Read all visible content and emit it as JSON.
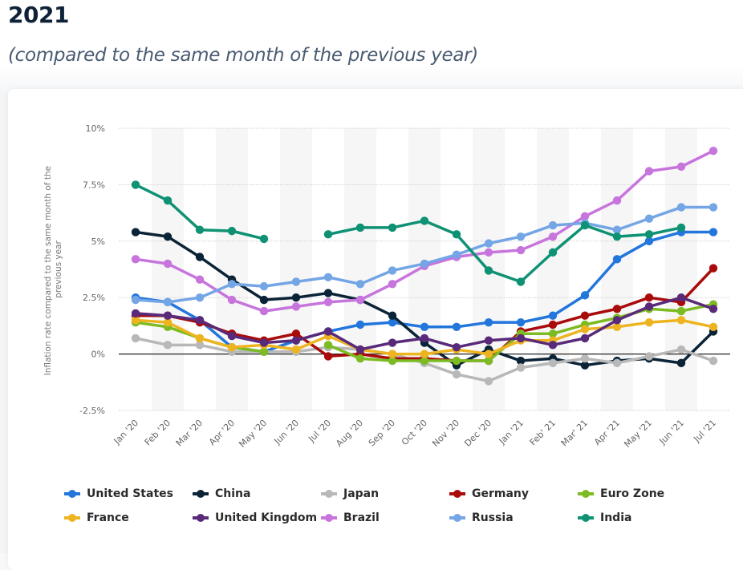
{
  "header": {
    "title": "2021",
    "subtitle": "(compared to the same month of the previous year)"
  },
  "chart_data": {
    "type": "line",
    "title": "2021",
    "subtitle": "(compared to the same month of the previous year)",
    "xlabel": "",
    "ylabel": "Inflation rate compared to the same month of the previous year",
    "ylim": [
      -2.5,
      10
    ],
    "y_ticks": [
      -2.5,
      0,
      2.5,
      5,
      7.5,
      10
    ],
    "y_tick_labels": [
      "-2.5%",
      "0%",
      "2.5%",
      "5%",
      "7.5%",
      "10%"
    ],
    "grid": true,
    "legend_position": "bottom",
    "categories": [
      "Jan '20",
      "Feb '20",
      "Mar '20",
      "Apr '20",
      "May '20",
      "Jun '20",
      "Jul '20",
      "Aug '20",
      "Sep '20",
      "Oct '20",
      "Nov '20",
      "Dec '20",
      "Jan '21",
      "Feb' 21",
      "Mar' 21",
      "Apr '21",
      "May '21",
      "Jun '21",
      "Jul '21"
    ],
    "series": [
      {
        "name": "United States",
        "color": "#2276dc",
        "values": [
          2.5,
          2.3,
          1.5,
          0.3,
          0.1,
          0.6,
          1.0,
          1.3,
          1.4,
          1.2,
          1.2,
          1.4,
          1.4,
          1.7,
          2.6,
          4.2,
          5.0,
          5.4,
          5.4
        ]
      },
      {
        "name": "China",
        "color": "#0b2336",
        "values": [
          5.4,
          5.2,
          4.3,
          3.3,
          2.4,
          2.5,
          2.7,
          2.4,
          1.7,
          0.5,
          -0.5,
          0.2,
          -0.3,
          -0.2,
          -0.5,
          -0.3,
          -0.2,
          -0.4,
          1.0
        ]
      },
      {
        "name": "Japan",
        "color": "#b8b8b8",
        "values": [
          0.7,
          0.4,
          0.4,
          0.1,
          0.1,
          0.1,
          0.3,
          0.2,
          0.0,
          -0.4,
          -0.9,
          -1.2,
          -0.6,
          -0.4,
          -0.2,
          -0.4,
          -0.1,
          0.2,
          -0.3
        ]
      },
      {
        "name": "Germany",
        "color": "#a90b0b",
        "values": [
          1.7,
          1.7,
          1.4,
          0.9,
          0.6,
          0.9,
          -0.1,
          0.0,
          -0.2,
          -0.2,
          -0.3,
          -0.3,
          1.0,
          1.3,
          1.7,
          2.0,
          2.5,
          2.3,
          3.8
        ]
      },
      {
        "name": "Euro Zone",
        "color": "#7cbb22",
        "values": [
          1.4,
          1.2,
          0.7,
          0.3,
          0.1,
          null,
          0.4,
          -0.2,
          -0.3,
          -0.3,
          -0.3,
          -0.3,
          0.9,
          0.9,
          1.3,
          1.6,
          2.0,
          1.9,
          2.2
        ]
      },
      {
        "name": "France",
        "color": "#eeb420",
        "values": [
          1.5,
          1.4,
          0.7,
          0.3,
          0.4,
          0.2,
          0.8,
          0.2,
          0.0,
          0.0,
          0.2,
          0.0,
          0.6,
          0.6,
          1.1,
          1.2,
          1.4,
          1.5,
          1.2
        ]
      },
      {
        "name": "United Kingdom",
        "color": "#5a2a7a",
        "values": [
          1.8,
          1.7,
          1.5,
          0.8,
          0.5,
          0.6,
          1.0,
          0.2,
          0.5,
          0.7,
          0.3,
          0.6,
          0.7,
          0.4,
          0.7,
          1.5,
          2.1,
          2.5,
          2.0
        ]
      },
      {
        "name": "Brazil",
        "color": "#c774dd",
        "values": [
          4.2,
          4.0,
          3.3,
          2.4,
          1.9,
          2.1,
          2.3,
          2.4,
          3.1,
          3.9,
          4.3,
          4.5,
          4.6,
          5.2,
          6.1,
          6.8,
          8.1,
          8.3,
          9.0
        ]
      },
      {
        "name": "Russia",
        "color": "#74a5e5",
        "values": [
          2.4,
          2.3,
          2.5,
          3.1,
          3.0,
          3.2,
          3.4,
          3.1,
          3.7,
          4.0,
          4.4,
          4.9,
          5.2,
          5.7,
          5.8,
          5.5,
          6.0,
          6.5,
          6.5
        ]
      },
      {
        "name": "India",
        "color": "#0f9274",
        "values": [
          7.5,
          6.8,
          5.5,
          5.45,
          5.1,
          null,
          5.3,
          5.6,
          5.6,
          5.9,
          5.3,
          3.7,
          3.2,
          4.5,
          5.7,
          5.2,
          5.3,
          5.6,
          null
        ]
      }
    ]
  },
  "legend": {
    "items": [
      {
        "label": "United States",
        "color": "#2276dc"
      },
      {
        "label": "China",
        "color": "#0b2336"
      },
      {
        "label": "Japan",
        "color": "#b8b8b8"
      },
      {
        "label": "Germany",
        "color": "#a90b0b"
      },
      {
        "label": "Euro Zone",
        "color": "#7cbb22"
      },
      {
        "label": "France",
        "color": "#eeb420"
      },
      {
        "label": "United Kingdom",
        "color": "#5a2a7a"
      },
      {
        "label": "Brazil",
        "color": "#c774dd"
      },
      {
        "label": "Russia",
        "color": "#74a5e5"
      },
      {
        "label": "India",
        "color": "#0f9274"
      }
    ]
  }
}
